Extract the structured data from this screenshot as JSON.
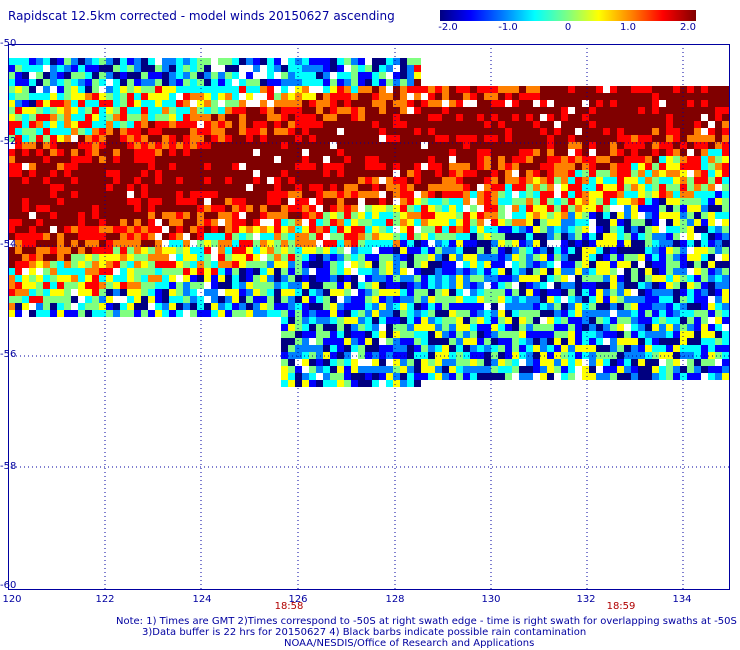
{
  "title": "Rapidscat 12.5km corrected - model winds 20150627 ascending",
  "colorbar": {
    "ticks": [
      "-2.0",
      "-1.0",
      "0",
      "1.0",
      "2.0"
    ],
    "colors": [
      "#000080",
      "#0000ff",
      "#0080ff",
      "#00ffff",
      "#80ff80",
      "#ffff00",
      "#ff8000",
      "#ff0000",
      "#800000"
    ]
  },
  "axes": {
    "y_labels": [
      "-50",
      "-52",
      "-54",
      "-56",
      "-58",
      "-60"
    ],
    "x_labels": [
      "120",
      "122",
      "124",
      "126",
      "128",
      "130",
      "132",
      "134"
    ],
    "lat_range": [
      -60,
      -50
    ],
    "lon_range": [
      120,
      135
    ]
  },
  "swath_times": [
    "18:58",
    "18:59"
  ],
  "notes": [
    "Note: 1) Times are GMT 2)Times correspond to -50S at right swath edge - time is right swath for overlapping swaths at -50S",
    "3)Data buffer is 22 hrs for 20150627 4) Black barbs indicate possible rain contamination",
    "NOAA/NESDIS/Office of Research and Applications"
  ]
}
